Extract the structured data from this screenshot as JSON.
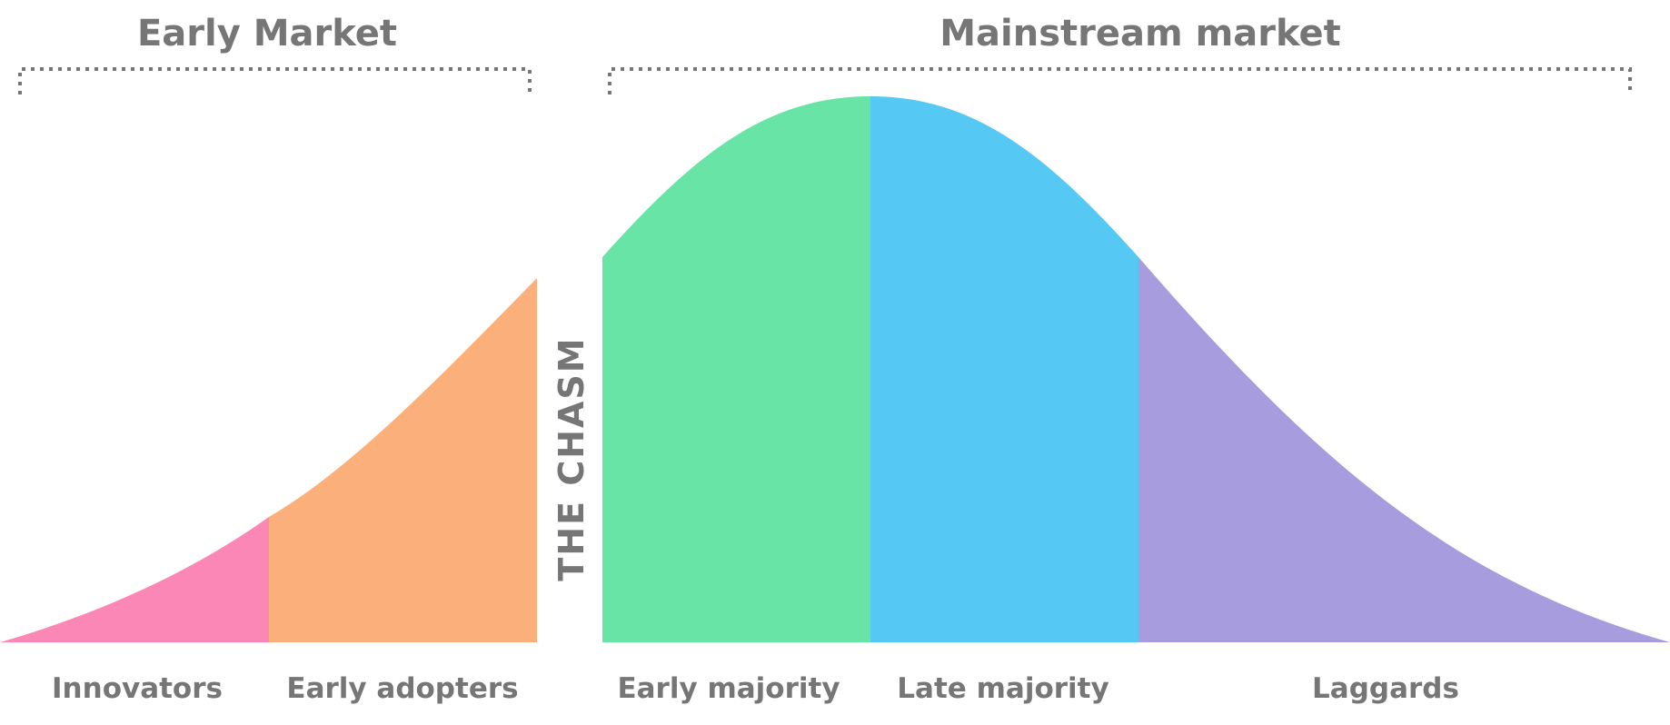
{
  "headings": {
    "early_market": "Early Market",
    "mainstream_market": "Mainstream market"
  },
  "chasm_label": "THE CHASM",
  "segments": [
    {
      "key": "innovators",
      "label": "Innovators",
      "color": "#fa87b6"
    },
    {
      "key": "early_adopters",
      "label": "Early adopters",
      "color": "#fbb07c"
    },
    {
      "key": "early_majority",
      "label": "Early majority",
      "color": "#68e4a6"
    },
    {
      "key": "late_majority",
      "label": "Late majority",
      "color": "#55c8f4"
    },
    {
      "key": "laggards",
      "label": "Laggards",
      "color": "#a69cde"
    }
  ],
  "colors": {
    "text": "#767676",
    "bracket": "#767676",
    "background": "#ffffff"
  }
}
